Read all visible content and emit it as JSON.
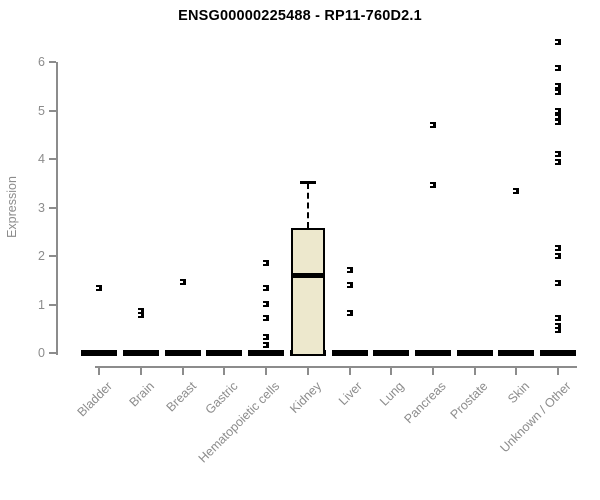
{
  "chart_data": {
    "type": "boxplot",
    "title": "ENSG00000225488 - RP11-760D2.1",
    "ylabel": "Expression",
    "ylim": [
      0,
      6.5
    ],
    "yticks": [
      0,
      1,
      2,
      3,
      4,
      5,
      6
    ],
    "categories": [
      "Bladder",
      "Brain",
      "Breast",
      "Gastric",
      "Hematopoietic cells",
      "Kidney",
      "Liver",
      "Lung",
      "Pancreas",
      "Prostate",
      "Skin",
      "Unknown / Other"
    ],
    "groups": [
      {
        "label": "Bladder",
        "zero_bar": true,
        "points": [
          1.33
        ],
        "box": null
      },
      {
        "label": "Brain",
        "zero_bar": true,
        "points": [
          0.86,
          0.79
        ],
        "box": null
      },
      {
        "label": "Breast",
        "zero_bar": true,
        "points": [
          1.46
        ],
        "box": null
      },
      {
        "label": "Gastric",
        "zero_bar": true,
        "points": [],
        "box": null
      },
      {
        "label": "Hematopoietic cells",
        "zero_bar": true,
        "points": [
          1.85,
          1.33,
          1.02,
          0.72,
          0.32,
          0.16
        ],
        "box": null
      },
      {
        "label": "Kidney",
        "zero_bar": true,
        "points": [],
        "box": {
          "whisker_low": 0,
          "q1": 0,
          "median": 1.6,
          "q3": 2.57,
          "whisker_high": 3.5
        }
      },
      {
        "label": "Liver",
        "zero_bar": true,
        "points": [
          1.71,
          1.4,
          0.83
        ],
        "box": null
      },
      {
        "label": "Lung",
        "zero_bar": true,
        "points": [],
        "box": null
      },
      {
        "label": "Pancreas",
        "zero_bar": true,
        "points": [
          4.7,
          3.46
        ],
        "box": null
      },
      {
        "label": "Prostate",
        "zero_bar": true,
        "points": [],
        "box": null
      },
      {
        "label": "Skin",
        "zero_bar": true,
        "points": [
          3.33
        ],
        "box": null
      },
      {
        "label": "Unknown / Other",
        "zero_bar": true,
        "points": [
          6.41,
          5.87,
          5.51,
          5.39,
          4.98,
          4.87,
          4.77,
          4.1,
          3.94,
          2.16,
          2.01,
          1.44,
          0.73,
          0.56,
          0.47
        ],
        "box": null
      }
    ],
    "legend_position": "none",
    "grid": false,
    "colors": {
      "box_fill": "#ede8cd",
      "box_border": "#000000",
      "median": "#000000",
      "point": "#000000",
      "zero_bar": "#000000",
      "axis": "#8c8c8c",
      "tick_label": "#8c8c8c",
      "title": "#000000",
      "background": "#ffffff"
    }
  }
}
